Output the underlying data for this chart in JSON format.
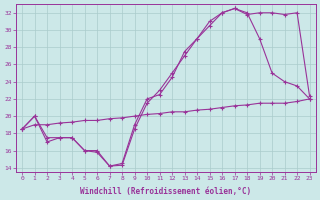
{
  "xlabel": "Windchill (Refroidissement éolien,°C)",
  "background_color": "#cce8e8",
  "grid_color": "#aacccc",
  "line_color": "#993399",
  "xlim_min": -0.5,
  "xlim_max": 23.5,
  "ylim_min": 13.5,
  "ylim_max": 33.0,
  "xticks": [
    0,
    1,
    2,
    3,
    4,
    5,
    6,
    7,
    8,
    9,
    10,
    11,
    12,
    13,
    14,
    15,
    16,
    17,
    18,
    19,
    20,
    21,
    22,
    23
  ],
  "yticks": [
    14,
    16,
    18,
    20,
    22,
    24,
    26,
    28,
    30,
    32
  ],
  "line1_x": [
    0,
    1,
    2,
    3,
    4,
    5,
    6,
    7,
    8,
    9,
    10,
    11,
    12,
    13,
    14,
    15,
    16,
    17,
    18,
    19,
    20,
    21,
    22,
    23
  ],
  "line1_y": [
    18.5,
    20.0,
    17.5,
    17.5,
    17.5,
    16.0,
    16.0,
    14.2,
    14.5,
    19.0,
    22.0,
    22.5,
    24.5,
    27.5,
    29.0,
    31.0,
    32.0,
    32.5,
    32.0,
    29.0,
    25.0,
    24.0,
    23.5,
    22.0
  ],
  "line2_x": [
    0,
    1,
    2,
    3,
    4,
    5,
    6,
    7,
    8,
    9,
    10,
    11,
    12,
    13,
    14,
    15,
    16,
    17,
    18,
    19,
    20,
    21,
    22,
    23
  ],
  "line2_y": [
    18.5,
    20.0,
    17.0,
    17.5,
    17.5,
    16.0,
    15.8,
    14.2,
    14.3,
    18.5,
    21.5,
    23.0,
    25.0,
    27.0,
    29.0,
    30.5,
    32.0,
    32.5,
    31.8,
    32.0,
    32.0,
    31.8,
    32.0,
    22.3
  ],
  "line3_x": [
    0,
    1,
    2,
    3,
    4,
    5,
    6,
    7,
    8,
    9,
    10,
    11,
    12,
    13,
    14,
    15,
    16,
    17,
    18,
    19,
    20,
    21,
    22,
    23
  ],
  "line3_y": [
    18.5,
    19.0,
    19.0,
    19.2,
    19.3,
    19.5,
    19.5,
    19.7,
    19.8,
    20.0,
    20.2,
    20.3,
    20.5,
    20.5,
    20.7,
    20.8,
    21.0,
    21.2,
    21.3,
    21.5,
    21.5,
    21.5,
    21.7,
    22.0
  ]
}
